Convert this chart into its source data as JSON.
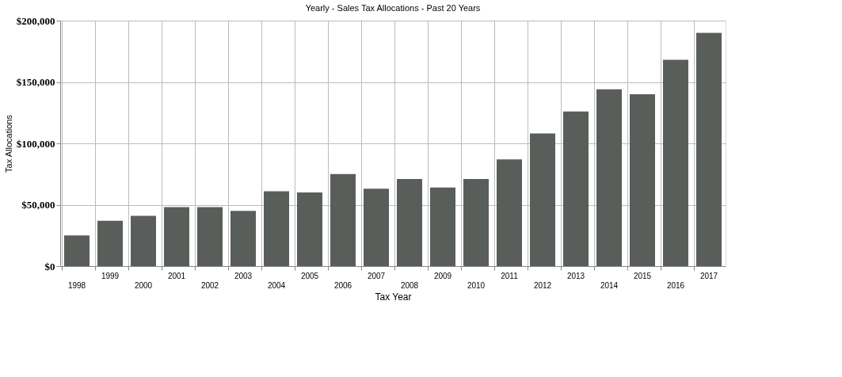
{
  "chart_data": {
    "type": "bar",
    "title": "Yearly - Sales Tax Allocations - Past 20 Years",
    "xlabel": "Tax Year",
    "ylabel": "Tax Allocations",
    "categories": [
      "1998",
      "1999",
      "2000",
      "2001",
      "2002",
      "2003",
      "2004",
      "2005",
      "2006",
      "2007",
      "2008",
      "2009",
      "2010",
      "2011",
      "2012",
      "2013",
      "2014",
      "2015",
      "2016",
      "2017"
    ],
    "values": [
      25000,
      37000,
      41000,
      48000,
      48000,
      45000,
      61000,
      60000,
      75000,
      63000,
      71000,
      64000,
      71000,
      87000,
      108000,
      126000,
      144000,
      140000,
      168000,
      190000
    ],
    "color": "#5a5e5a",
    "ylim": [
      0,
      200000
    ],
    "yticks": [
      {
        "value": 0,
        "label": "$0"
      },
      {
        "value": 50000,
        "label": "$50,000"
      },
      {
        "value": 100000,
        "label": "$100,000"
      },
      {
        "value": 150000,
        "label": "$150,000"
      },
      {
        "value": 200000,
        "label": "$200,000"
      }
    ],
    "grid": true
  }
}
